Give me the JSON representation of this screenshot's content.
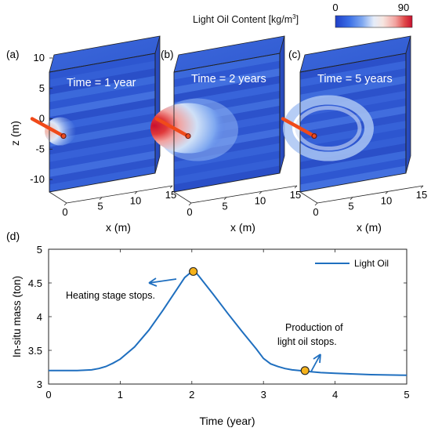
{
  "colorbar": {
    "label": "Light Oil Content [kg/m",
    "label_sup": "3",
    "label_end": "]",
    "min_label": "0",
    "max_label": "90",
    "colors": [
      "#1f3fc8",
      "#3b6fe6",
      "#7fa8f0",
      "#cfe0f7",
      "#f7e6e0",
      "#f2a3a0",
      "#e04a4a",
      "#c8102e"
    ]
  },
  "panels": [
    {
      "tag": "(a)",
      "time_label": "Time = 1 year",
      "x_axis_label": "x (m)",
      "x_ticks": [
        "0",
        "5",
        "10",
        "15"
      ],
      "z_axis_label": "z (m)",
      "z_ticks": [
        "10",
        "5",
        "0",
        "-5",
        "-10"
      ],
      "plume": "small"
    },
    {
      "tag": "(b)",
      "time_label": "Time = 2 years",
      "x_axis_label": "x (m)",
      "x_ticks": [
        "0",
        "5",
        "10",
        "15"
      ],
      "plume": "large"
    },
    {
      "tag": "(c)",
      "time_label": "Time = 5 years",
      "x_axis_label": "x (m)",
      "x_ticks": [
        "0",
        "5",
        "10",
        "15"
      ],
      "plume": "ring"
    }
  ],
  "chart_data": {
    "tag": "(d)",
    "type": "line",
    "xlabel": "Time (year)",
    "ylabel": "In-situ mass (ton)",
    "xlim": [
      0,
      5
    ],
    "ylim": [
      3,
      5
    ],
    "x_ticks": [
      "0",
      "1",
      "2",
      "3",
      "4",
      "5"
    ],
    "y_ticks": [
      "3",
      "3.5",
      "4",
      "4.5",
      "5"
    ],
    "legend_position": "top-right",
    "line_color": "#1f6fbf",
    "marker_color": "#f5b21b",
    "series": [
      {
        "name": "Light Oil",
        "x": [
          0,
          0.2,
          0.4,
          0.6,
          0.7,
          0.8,
          0.9,
          1.0,
          1.2,
          1.4,
          1.6,
          1.8,
          1.9,
          2.0,
          2.05,
          2.1,
          2.3,
          2.5,
          2.7,
          2.9,
          3.0,
          3.1,
          3.2,
          3.3,
          3.4,
          3.5,
          3.6,
          3.8,
          4.0,
          4.5,
          5.0
        ],
        "y": [
          3.2,
          3.2,
          3.2,
          3.21,
          3.23,
          3.26,
          3.31,
          3.37,
          3.55,
          3.8,
          4.1,
          4.42,
          4.58,
          4.67,
          4.66,
          4.6,
          4.33,
          4.05,
          3.78,
          3.52,
          3.38,
          3.3,
          3.26,
          3.23,
          3.21,
          3.2,
          3.19,
          3.17,
          3.16,
          3.14,
          3.13
        ]
      }
    ],
    "markers": [
      {
        "x": 2.02,
        "y": 4.67
      },
      {
        "x": 3.58,
        "y": 3.2
      }
    ],
    "annotations": [
      {
        "text": "Heating stage stops."
      },
      {
        "text": "Production of"
      },
      {
        "text": "light oil stops."
      }
    ]
  }
}
